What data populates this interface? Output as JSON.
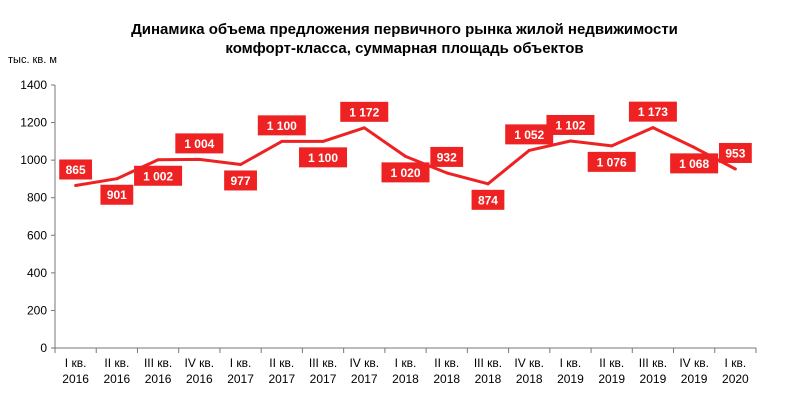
{
  "chart_data": {
    "type": "line",
    "title_lines": [
      "Динамика объема предложения первичного рынка жилой недвижимости",
      "комфорт-класса, суммарная площадь объектов"
    ],
    "ylabel": "тыс. кв. м",
    "xlabel": "",
    "ylim": [
      0,
      1400
    ],
    "yticks": [
      0,
      200,
      400,
      600,
      800,
      1000,
      1200,
      1400
    ],
    "ytick_labels": [
      "0",
      "200",
      "400",
      "600",
      "800",
      "1000",
      "1200",
      "1400"
    ],
    "categories": [
      [
        "I кв.",
        "2016"
      ],
      [
        "II кв.",
        "2016"
      ],
      [
        "III кв.",
        "2016"
      ],
      [
        "IV кв.",
        "2016"
      ],
      [
        "I кв.",
        "2017"
      ],
      [
        "II кв.",
        "2017"
      ],
      [
        "III кв.",
        "2017"
      ],
      [
        "IV кв.",
        "2017"
      ],
      [
        "I кв.",
        "2018"
      ],
      [
        "II кв.",
        "2018"
      ],
      [
        "III кв.",
        "2018"
      ],
      [
        "IV кв.",
        "2018"
      ],
      [
        "I кв.",
        "2019"
      ],
      [
        "II кв.",
        "2019"
      ],
      [
        "III кв.",
        "2019"
      ],
      [
        "IV кв.",
        "2019"
      ],
      [
        "I кв.",
        "2020"
      ]
    ],
    "values": [
      865,
      901,
      1002,
      1004,
      977,
      1100,
      1100,
      1172,
      1020,
      932,
      874,
      1052,
      1102,
      1076,
      1173,
      1068,
      953
    ],
    "data_labels": [
      "865",
      "901",
      "1 002",
      "1 004",
      "977",
      "1 100",
      "1 100",
      "1 172",
      "1 020",
      "932",
      "874",
      "1 052",
      "1 102",
      "1 076",
      "1 173",
      "1 068",
      "953"
    ],
    "label_positions": [
      "above",
      "below",
      "below",
      "above",
      "below",
      "above",
      "below",
      "above",
      "below",
      "above",
      "below",
      "above",
      "above",
      "below",
      "above",
      "below",
      "above"
    ],
    "grid": false,
    "legend": "none",
    "line_color": "#ee2222",
    "label_bg_color": "#ee2222"
  }
}
